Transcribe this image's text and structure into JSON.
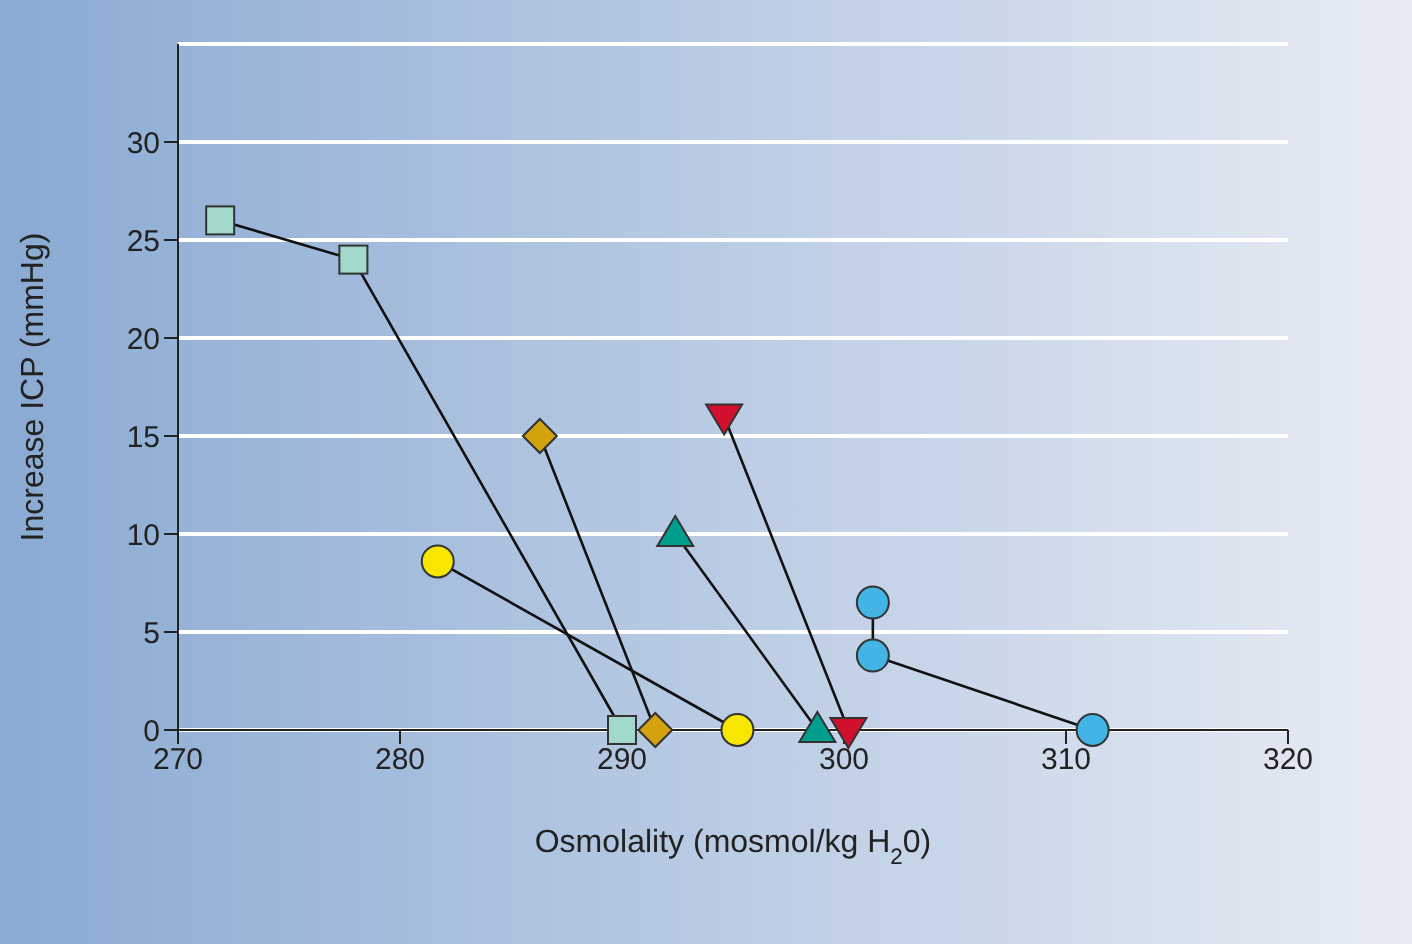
{
  "chart_data": {
    "type": "line",
    "xlabel": "Osmolality (mosmol/kg H$_{2}$0)",
    "ylabel": "Increase ICP (mmHg)",
    "xlim": [
      270,
      320
    ],
    "xticks": [
      270,
      280,
      290,
      300,
      310,
      320
    ],
    "ylim": [
      0,
      35
    ],
    "yticks": [
      0,
      5,
      10,
      15,
      20,
      25,
      30
    ],
    "grid": "y",
    "series": [
      {
        "color": "#a3d8cc",
        "marker": "square",
        "x": [
          271.9,
          277.9,
          290
        ],
        "values": [
          26,
          24,
          0
        ]
      },
      {
        "color": "#d4a20c",
        "marker": "diamond",
        "x": [
          286.3,
          291.5
        ],
        "values": [
          15,
          0
        ]
      },
      {
        "color": "#f7e600",
        "marker": "circle",
        "x": [
          281.7,
          295.2
        ],
        "values": [
          8.6,
          0
        ]
      },
      {
        "color": "#009e8c",
        "marker": "triangle",
        "x": [
          292.4,
          298.8
        ],
        "values": [
          10,
          0
        ]
      },
      {
        "color": "#d0102c",
        "marker": "triangle-down",
        "x": [
          294.6,
          300.2
        ],
        "values": [
          16,
          0
        ]
      },
      {
        "color": "#42b4e6",
        "marker": "circle",
        "x": [
          301.3,
          301.3,
          311.2
        ],
        "values": [
          6.5,
          3.8,
          0
        ]
      }
    ]
  }
}
